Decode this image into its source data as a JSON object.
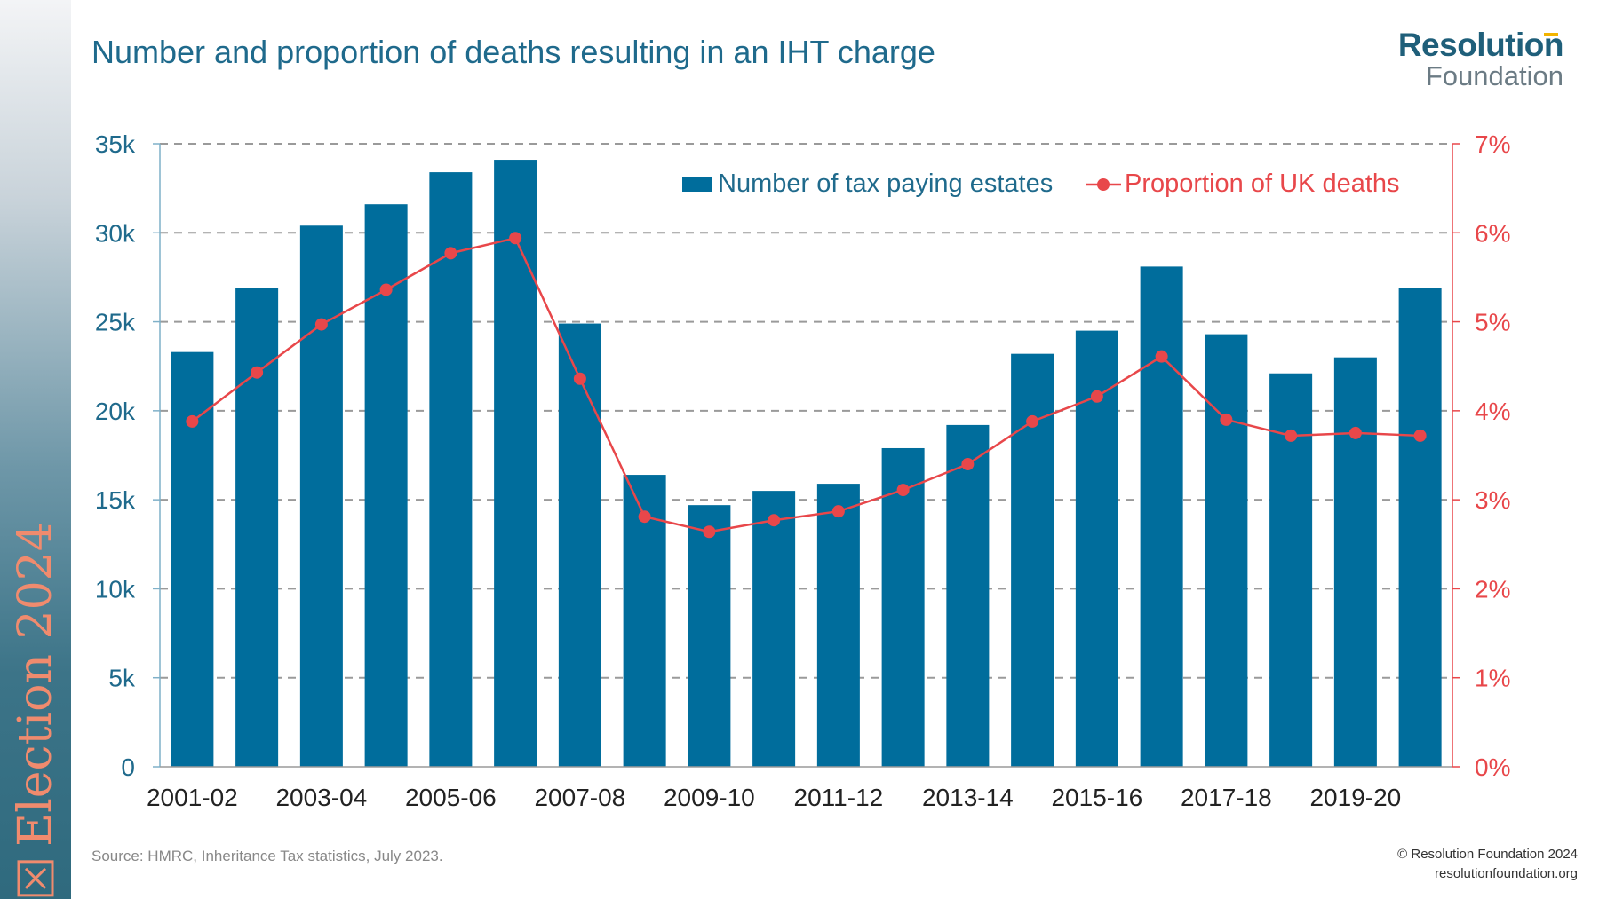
{
  "sidebar": {
    "label": "Election 2024",
    "icon": "ballot-box-icon"
  },
  "header": {
    "title": "Number and proportion of deaths resulting in an IHT charge"
  },
  "logo": {
    "line1": "Resolution",
    "line2": "Foundation"
  },
  "footer": {
    "source": "Source: HMRC, Inheritance Tax statistics, July 2023.",
    "copyright": "© Resolution Foundation 2024",
    "website": "resolutionfoundation.org"
  },
  "colors": {
    "bar": "#006d9c",
    "line": "#e8474a",
    "title": "#1f6a8c",
    "left_axis": "#1f6a8c",
    "right_axis": "#e8474a"
  },
  "chart_data": {
    "type": "bar",
    "title": "Number and proportion of deaths resulting in an IHT charge",
    "categories": [
      "2001-02",
      "2002-03",
      "2003-04",
      "2004-05",
      "2005-06",
      "2006-07",
      "2007-08",
      "2008-09",
      "2009-10",
      "2010-11",
      "2011-12",
      "2012-13",
      "2013-14",
      "2014-15",
      "2015-16",
      "2016-17",
      "2017-18",
      "2018-19",
      "2019-20",
      "2020-21"
    ],
    "x_tick_labels": [
      "2001-02",
      "",
      "2003-04",
      "",
      "2005-06",
      "",
      "2007-08",
      "",
      "2009-10",
      "",
      "2011-12",
      "",
      "2013-14",
      "",
      "2015-16",
      "",
      "2017-18",
      "",
      "2019-20",
      ""
    ],
    "series": [
      {
        "name": "Number of tax paying estates",
        "type": "bar",
        "axis": "left",
        "values": [
          23300,
          26900,
          30400,
          31600,
          33400,
          34100,
          24900,
          16400,
          14700,
          15500,
          15900,
          17900,
          19200,
          23200,
          24500,
          28100,
          24300,
          22100,
          23000,
          26900
        ]
      },
      {
        "name": "Proportion of UK deaths",
        "type": "line",
        "axis": "right",
        "values": [
          3.88,
          4.43,
          4.97,
          5.36,
          5.77,
          5.94,
          4.36,
          2.81,
          2.64,
          2.77,
          2.87,
          3.11,
          3.4,
          3.88,
          4.16,
          4.61,
          3.9,
          3.72,
          3.75,
          3.72
        ]
      }
    ],
    "y_left": {
      "label": "",
      "ylim": [
        0,
        35000
      ],
      "ticks": [
        0,
        5000,
        10000,
        15000,
        20000,
        25000,
        30000,
        35000
      ],
      "tick_labels": [
        "0",
        "5k",
        "10k",
        "15k",
        "20k",
        "25k",
        "30k",
        "35k"
      ]
    },
    "y_right": {
      "label": "",
      "ylim": [
        0,
        7
      ],
      "ticks": [
        0,
        1,
        2,
        3,
        4,
        5,
        6,
        7
      ],
      "tick_labels": [
        "0%",
        "1%",
        "2%",
        "3%",
        "4%",
        "5%",
        "6%",
        "7%"
      ]
    },
    "grid": true,
    "legend": {
      "position": "top-right",
      "entries": [
        "Number of tax paying estates",
        "Proportion of UK deaths"
      ]
    }
  }
}
